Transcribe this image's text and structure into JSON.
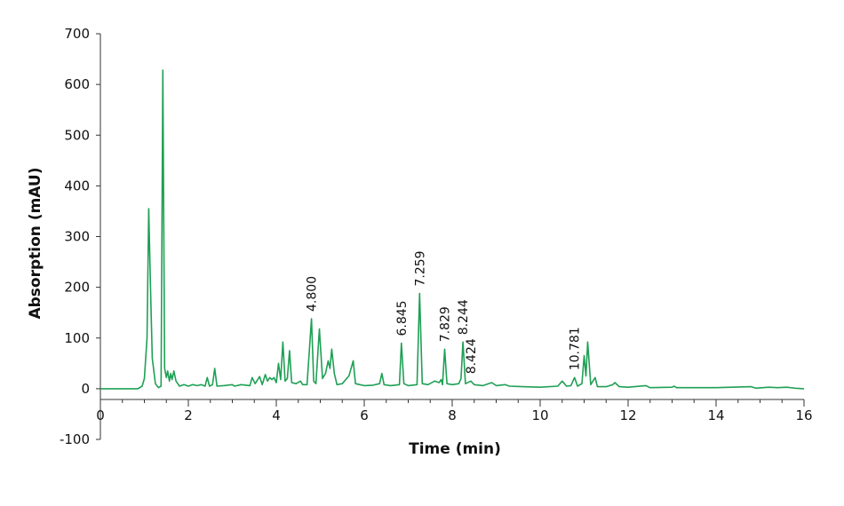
{
  "chart_data": {
    "type": "line",
    "title": "",
    "xlabel": "Time (min)",
    "ylabel": "Absorption (mAU)",
    "xlim": [
      0,
      16
    ],
    "ylim": [
      -100,
      700
    ],
    "x_ticks": [
      0,
      2,
      4,
      6,
      8,
      10,
      12,
      14,
      16
    ],
    "y_ticks": [
      -100,
      0,
      100,
      200,
      300,
      400,
      500,
      600,
      700
    ],
    "grid": false,
    "legend": null,
    "line_color": "#1fa055",
    "series": [
      {
        "name": "chromatogram",
        "points": [
          [
            0,
            0
          ],
          [
            0.85,
            0
          ],
          [
            0.95,
            5
          ],
          [
            1.0,
            20
          ],
          [
            1.03,
            60
          ],
          [
            1.06,
            100
          ],
          [
            1.1,
            355
          ],
          [
            1.14,
            200
          ],
          [
            1.18,
            60
          ],
          [
            1.25,
            10
          ],
          [
            1.32,
            2
          ],
          [
            1.38,
            5
          ],
          [
            1.42,
            628
          ],
          [
            1.46,
            40
          ],
          [
            1.5,
            22
          ],
          [
            1.53,
            35
          ],
          [
            1.57,
            15
          ],
          [
            1.6,
            30
          ],
          [
            1.63,
            18
          ],
          [
            1.67,
            35
          ],
          [
            1.72,
            15
          ],
          [
            1.8,
            5
          ],
          [
            1.9,
            8
          ],
          [
            2.0,
            5
          ],
          [
            2.1,
            8
          ],
          [
            2.2,
            6
          ],
          [
            2.3,
            8
          ],
          [
            2.38,
            5
          ],
          [
            2.43,
            22
          ],
          [
            2.48,
            5
          ],
          [
            2.55,
            8
          ],
          [
            2.6,
            40
          ],
          [
            2.65,
            5
          ],
          [
            2.8,
            6
          ],
          [
            3.0,
            8
          ],
          [
            3.05,
            5
          ],
          [
            3.2,
            8
          ],
          [
            3.4,
            6
          ],
          [
            3.45,
            22
          ],
          [
            3.52,
            10
          ],
          [
            3.62,
            24
          ],
          [
            3.68,
            8
          ],
          [
            3.75,
            28
          ],
          [
            3.8,
            15
          ],
          [
            3.85,
            22
          ],
          [
            3.9,
            18
          ],
          [
            3.95,
            22
          ],
          [
            4.0,
            12
          ],
          [
            4.05,
            50
          ],
          [
            4.1,
            18
          ],
          [
            4.15,
            92
          ],
          [
            4.2,
            15
          ],
          [
            4.25,
            20
          ],
          [
            4.3,
            75
          ],
          [
            4.35,
            12
          ],
          [
            4.45,
            10
          ],
          [
            4.55,
            15
          ],
          [
            4.6,
            8
          ],
          [
            4.7,
            8
          ],
          [
            4.8,
            138
          ],
          [
            4.85,
            15
          ],
          [
            4.9,
            10
          ],
          [
            4.98,
            118
          ],
          [
            5.05,
            20
          ],
          [
            5.12,
            30
          ],
          [
            5.18,
            55
          ],
          [
            5.22,
            40
          ],
          [
            5.26,
            78
          ],
          [
            5.32,
            30
          ],
          [
            5.38,
            8
          ],
          [
            5.5,
            10
          ],
          [
            5.6,
            20
          ],
          [
            5.65,
            25
          ],
          [
            5.7,
            40
          ],
          [
            5.75,
            55
          ],
          [
            5.8,
            10
          ],
          [
            5.9,
            8
          ],
          [
            6.0,
            6
          ],
          [
            6.2,
            7
          ],
          [
            6.35,
            10
          ],
          [
            6.4,
            30
          ],
          [
            6.45,
            8
          ],
          [
            6.6,
            6
          ],
          [
            6.8,
            8
          ],
          [
            6.845,
            90
          ],
          [
            6.9,
            10
          ],
          [
            7.0,
            6
          ],
          [
            7.2,
            8
          ],
          [
            7.259,
            188
          ],
          [
            7.32,
            10
          ],
          [
            7.45,
            8
          ],
          [
            7.6,
            15
          ],
          [
            7.7,
            12
          ],
          [
            7.75,
            18
          ],
          [
            7.78,
            8
          ],
          [
            7.829,
            78
          ],
          [
            7.88,
            10
          ],
          [
            8.0,
            8
          ],
          [
            8.15,
            10
          ],
          [
            8.2,
            20
          ],
          [
            8.244,
            92
          ],
          [
            8.3,
            10
          ],
          [
            8.424,
            15
          ],
          [
            8.5,
            8
          ],
          [
            8.7,
            6
          ],
          [
            8.9,
            12
          ],
          [
            9.0,
            6
          ],
          [
            9.2,
            8
          ],
          [
            9.3,
            5
          ],
          [
            9.6,
            4
          ],
          [
            10.0,
            3
          ],
          [
            10.4,
            5
          ],
          [
            10.5,
            15
          ],
          [
            10.6,
            5
          ],
          [
            10.7,
            6
          ],
          [
            10.781,
            22
          ],
          [
            10.85,
            5
          ],
          [
            10.95,
            10
          ],
          [
            11.0,
            65
          ],
          [
            11.04,
            25
          ],
          [
            11.08,
            92
          ],
          [
            11.15,
            8
          ],
          [
            11.25,
            22
          ],
          [
            11.3,
            4
          ],
          [
            11.5,
            4
          ],
          [
            11.65,
            8
          ],
          [
            11.7,
            12
          ],
          [
            11.8,
            4
          ],
          [
            12.0,
            3
          ],
          [
            12.4,
            6
          ],
          [
            12.5,
            2
          ],
          [
            13.0,
            3
          ],
          [
            13.05,
            5
          ],
          [
            13.1,
            2
          ],
          [
            14.0,
            2
          ],
          [
            14.8,
            4
          ],
          [
            14.9,
            1
          ],
          [
            15.2,
            3
          ],
          [
            15.4,
            2
          ],
          [
            15.6,
            3
          ],
          [
            15.8,
            1
          ],
          [
            16.0,
            0
          ]
        ]
      }
    ],
    "annotations": [
      {
        "text": "4.800",
        "x": 4.8,
        "y": 138,
        "rotation": -90
      },
      {
        "text": "6.845",
        "x": 6.845,
        "y": 90,
        "rotation": -90
      },
      {
        "text": "7.259",
        "x": 7.259,
        "y": 188,
        "rotation": -90
      },
      {
        "text": "7.829",
        "x": 7.829,
        "y": 78,
        "rotation": -90
      },
      {
        "text": "8.244",
        "x": 8.244,
        "y": 92,
        "rotation": -90
      },
      {
        "text": "8.424",
        "x": 8.424,
        "y": 15,
        "rotation": -90
      },
      {
        "text": "10.781",
        "x": 10.781,
        "y": 22,
        "rotation": -90
      }
    ]
  }
}
